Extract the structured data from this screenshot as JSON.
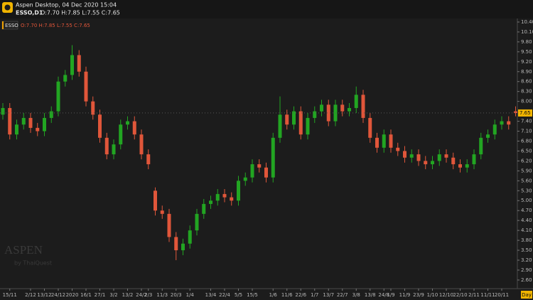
{
  "window_title": "Aspen Desktop, 04 Dec 2020 15:04",
  "symbol_timeframe": "ESSO,D1",
  "ohlc_text": "O:7.70 H:7.85 L:7.55 C:7.65",
  "legend_symbol": "ESSO",
  "watermark": "ASPEN",
  "watermark_sub": "by ThaiQuest",
  "timeframe_label": "Day",
  "chart_data": {
    "type": "candlestick",
    "up_color": "#22a522",
    "down_color": "#e0563a",
    "grid": false,
    "current_price": 7.65,
    "categories": [
      null,
      "15/11",
      null,
      null,
      "2/12",
      null,
      "13/12",
      null,
      "24/12",
      null,
      "2020",
      null,
      "16/1",
      null,
      "27/1",
      null,
      "3/2",
      null,
      "13/2",
      null,
      "24/2",
      "2/3",
      null,
      "11/3",
      null,
      "20/3",
      null,
      "1/4",
      null,
      null,
      "13/4",
      null,
      "22/4",
      null,
      "5/5",
      null,
      "15/5",
      null,
      null,
      "1/6",
      null,
      "11/6",
      null,
      "22/6",
      null,
      "1/7",
      null,
      "13/7",
      null,
      "22/7",
      null,
      "3/8",
      null,
      "13/8",
      null,
      "24/8",
      "1/9",
      null,
      "11/9",
      null,
      "23/9",
      null,
      "1/10",
      null,
      "12/10",
      null,
      "22/10",
      null,
      "2/11",
      null,
      "11/11",
      null,
      "20/11",
      null,
      null
    ],
    "open": [
      7.6,
      7.8,
      7,
      7.3,
      7.5,
      7.2,
      7.1,
      7.5,
      7.7,
      8.6,
      8.8,
      9.4,
      8.9,
      8,
      7.6,
      6.9,
      6.4,
      6.7,
      7.3,
      7.4,
      7,
      6.4,
      5.3,
      4.7,
      4.6,
      3.9,
      3.5,
      3.7,
      4.1,
      4.6,
      4.9,
      5,
      5.2,
      5.1,
      5,
      5.6,
      5.7,
      6.1,
      6,
      5.7,
      6.9,
      7.6,
      7.3,
      7.7,
      7,
      7.5,
      7.7,
      7.9,
      7.4,
      7.9,
      7.7,
      7.8,
      8.2,
      7.5,
      6.9,
      6.6,
      7,
      6.6,
      6.5,
      6.3,
      6.4,
      6.2,
      6.1,
      6.2,
      6.4,
      6.3,
      6.1,
      6,
      6.1,
      6.4,
      6.9,
      7,
      7.3,
      7.4,
      7.7
    ],
    "high": [
      7.95,
      7.95,
      7.45,
      7.65,
      7.65,
      7.35,
      7.65,
      7.85,
      8.75,
      8.95,
      9.7,
      9.55,
      9.05,
      8.15,
      7.75,
      7.05,
      6.85,
      7.45,
      7.55,
      7.55,
      7.15,
      6.55,
      5.4,
      4.85,
      4.75,
      4.05,
      3.85,
      4.25,
      4.75,
      5.05,
      5.15,
      5.35,
      5.35,
      5.25,
      5.75,
      5.85,
      6.25,
      6.25,
      6.15,
      7.05,
      8.15,
      7.75,
      7.85,
      7.85,
      7.65,
      7.85,
      8.05,
      8.05,
      8.05,
      8.05,
      7.95,
      8.45,
      8.35,
      7.65,
      7.05,
      7.15,
      7.15,
      6.75,
      6.65,
      6.55,
      6.55,
      6.35,
      6.35,
      6.55,
      6.55,
      6.45,
      6.25,
      6.25,
      6.55,
      7.05,
      7.15,
      7.45,
      7.55,
      7.55,
      7.85
    ],
    "low": [
      7.45,
      6.85,
      6.85,
      7.15,
      7.05,
      6.95,
      6.95,
      7.35,
      7.55,
      8.45,
      8.65,
      8.75,
      7.85,
      7.45,
      6.75,
      6.25,
      6.25,
      6.55,
      7.15,
      6.85,
      6.25,
      5.95,
      4.55,
      4.45,
      3.75,
      3.2,
      3.35,
      3.55,
      3.95,
      4.45,
      4.75,
      4.85,
      4.95,
      4.85,
      4.85,
      5.45,
      5.55,
      5.85,
      5.55,
      5.55,
      6.75,
      7.15,
      7.15,
      6.85,
      6.85,
      7.35,
      7.55,
      7.25,
      7.25,
      7.55,
      7.55,
      7.65,
      7.35,
      6.75,
      6.45,
      6.45,
      6.45,
      6.35,
      6.15,
      6.15,
      6.05,
      5.95,
      5.95,
      6.05,
      6.15,
      5.95,
      5.85,
      5.85,
      5.95,
      6.25,
      6.75,
      6.85,
      7.15,
      7.15,
      7.55
    ],
    "close": [
      7.8,
      7,
      7.3,
      7.5,
      7.2,
      7.1,
      7.5,
      7.7,
      8.6,
      8.8,
      9.4,
      8.9,
      8,
      7.6,
      6.9,
      6.4,
      6.7,
      7.3,
      7.4,
      7,
      6.4,
      6.1,
      4.7,
      4.6,
      3.9,
      3.5,
      3.7,
      4.1,
      4.6,
      4.9,
      5,
      5.2,
      5.1,
      5,
      5.6,
      5.7,
      6.1,
      6,
      5.7,
      6.9,
      7.6,
      7.3,
      7.7,
      7,
      7.5,
      7.7,
      7.9,
      7.4,
      7.9,
      7.7,
      7.8,
      8.2,
      7.5,
      6.9,
      6.6,
      7,
      6.6,
      6.5,
      6.3,
      6.4,
      6.2,
      6.1,
      6.2,
      6.4,
      6.3,
      6.1,
      6,
      6.1,
      6.4,
      6.9,
      7,
      7.3,
      7.4,
      7.3,
      7.65
    ],
    "ylim": [
      2.34,
      10.55
    ],
    "yticks": [
      {
        "value": 10.4,
        "label": "10.40"
      },
      {
        "value": 10.1,
        "label": "10.10"
      },
      {
        "value": 9.8,
        "label": "9.80"
      },
      {
        "value": 9.5,
        "label": "9.50"
      },
      {
        "value": 9.2,
        "label": "9.20"
      },
      {
        "value": 8.9,
        "label": "8.90"
      },
      {
        "value": 8.6,
        "label": "8.60"
      },
      {
        "value": 8.3,
        "label": "8.30"
      },
      {
        "value": 8,
        "label": "8.00"
      },
      {
        "value": 7.4,
        "label": "7.40"
      },
      {
        "value": 7.1,
        "label": "7.10"
      },
      {
        "value": 6.8,
        "label": "6.80"
      },
      {
        "value": 6.5,
        "label": "6.50"
      },
      {
        "value": 6.2,
        "label": "6.20"
      },
      {
        "value": 5.9,
        "label": "5.90"
      },
      {
        "value": 5.6,
        "label": "5.60"
      },
      {
        "value": 5.3,
        "label": "5.30"
      },
      {
        "value": 5,
        "label": "5.00"
      },
      {
        "value": 4.7,
        "label": "4.70"
      },
      {
        "value": 4.4,
        "label": "4.40"
      },
      {
        "value": 4.1,
        "label": "4.10"
      },
      {
        "value": 3.8,
        "label": "3.80"
      },
      {
        "value": 3.5,
        "label": "3.50"
      },
      {
        "value": 3.2,
        "label": "3.20"
      },
      {
        "value": 2.9,
        "label": "2.90"
      },
      {
        "value": 2.6,
        "label": "2.60"
      }
    ]
  }
}
